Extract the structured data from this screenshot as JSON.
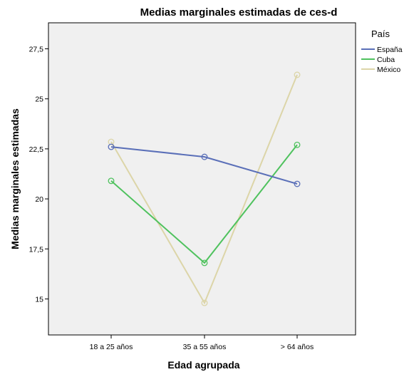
{
  "chart_data": {
    "type": "line",
    "title": "Medias marginales estimadas de ces-d",
    "xlabel": "Edad agrupada",
    "ylabel": "Medias marginales estimadas",
    "categories": [
      "18 a 25 años",
      "35 a 55 años",
      "> 64 años"
    ],
    "ylim": [
      13.2,
      28.8
    ],
    "yticks": [
      15,
      17.5,
      20,
      22.5,
      25,
      27.5
    ],
    "ytick_labels": [
      "15",
      "17,5",
      "20",
      "22,5",
      "25",
      "27,5"
    ],
    "legend": {
      "title": "País",
      "placement": "right"
    },
    "series": [
      {
        "name": "España",
        "values": [
          22.6,
          22.1,
          20.75
        ],
        "color": "#5a6fb8"
      },
      {
        "name": "Cuba",
        "values": [
          20.9,
          16.8,
          22.7
        ],
        "color": "#4fc25e"
      },
      {
        "name": "México",
        "values": [
          22.85,
          14.8,
          26.2
        ],
        "color": "#dcd5a8"
      }
    ],
    "plot_background": "#f0f0f0",
    "grid": false
  }
}
